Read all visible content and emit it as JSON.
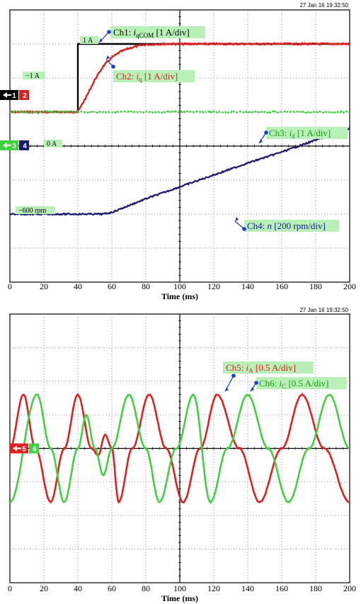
{
  "panels": [
    {
      "timestamp": "27 Jan 16  19:32:50",
      "markers": [
        {
          "id": "1",
          "color": "#000000"
        },
        {
          "id": "2",
          "color": "#e02020"
        },
        {
          "id": "3",
          "color": "#40d040"
        },
        {
          "id": "4",
          "color": "#1a1a6e"
        }
      ],
      "level_labels": [
        "1 A",
        "−1 A",
        "0 A",
        "−600 rpm"
      ],
      "channels": [
        {
          "prefix": "Ch1: ",
          "sym": "i",
          "sub": "qCOM",
          "unit": " [1 A/div]",
          "color": "#000000",
          "bg": "#b8f0b8"
        },
        {
          "prefix": "Ch2: ",
          "sym": "i",
          "sub": "q",
          "unit": " [1 A/div]",
          "color": "#e02020",
          "bg": "#b8f0b8"
        },
        {
          "prefix": "Ch3: ",
          "sym": "i",
          "sub": "d",
          "unit": " [1 A/div]",
          "color": "#10a010",
          "bg": "#b8f0b8"
        },
        {
          "prefix": "Ch4: ",
          "sym": "n",
          "sub": "",
          "unit": " [200 rpm/div]",
          "color": "#1a1a8e",
          "bg": "#b8f0b8"
        }
      ]
    },
    {
      "timestamp": "27 Jan 16  19:32:50",
      "markers": [
        {
          "id": "5",
          "color": "#e02020"
        },
        {
          "id": "6",
          "color": "#40d040"
        }
      ],
      "level_labels": [],
      "channels": [
        {
          "prefix": "Ch5: ",
          "sym": "i",
          "sub": "A",
          "unit": " [0.5 A/div]",
          "color": "#e02020",
          "bg": "#b8f0b8"
        },
        {
          "prefix": "Ch6: ",
          "sym": "i",
          "sub": "C",
          "unit": " [0.5 A/div]",
          "color": "#10a010",
          "bg": "#b8f0b8"
        }
      ]
    }
  ],
  "chart_data": [
    {
      "type": "line",
      "title": "",
      "xlabel": "Time (ms)",
      "ylabel": "",
      "xlim": [
        0,
        200
      ],
      "x_ticks": [
        0,
        20,
        40,
        60,
        80,
        100,
        120,
        140,
        160,
        180,
        200
      ],
      "ylim_div": [
        -4,
        4
      ],
      "grid": true,
      "series": [
        {
          "name": "Ch1: iqCOM [1 A/div]",
          "color": "#000000",
          "x": [
            0,
            40,
            40,
            200
          ],
          "y": [
            -1,
            -1,
            1,
            1
          ]
        },
        {
          "name": "Ch2: iq [1 A/div]",
          "color": "#e02020",
          "x": [
            0,
            40,
            45,
            50,
            55,
            60,
            65,
            70,
            75,
            80,
            90,
            100,
            200
          ],
          "y": [
            -1,
            -1,
            -0.55,
            -0.05,
            0.35,
            0.6,
            0.77,
            0.87,
            0.94,
            0.98,
            1.0,
            1.0,
            1.0
          ]
        },
        {
          "name": "Ch3: id [1 A/div]",
          "color": "#40d040",
          "x": [
            0,
            200
          ],
          "y": [
            0,
            0
          ]
        },
        {
          "name": "Ch4: n [200 rpm/div]",
          "color": "#1a1a6e",
          "x": [
            0,
            55,
            60,
            80,
            100,
            120,
            140,
            160,
            180,
            200
          ],
          "y": [
            -600,
            -600,
            -590,
            -510,
            -440,
            -370,
            -300,
            -235,
            -165,
            -95
          ]
        }
      ]
    },
    {
      "type": "line",
      "title": "",
      "xlabel": "Time (ms)",
      "ylabel": "",
      "xlim": [
        0,
        200
      ],
      "x_ticks": [
        0,
        20,
        40,
        60,
        80,
        100,
        120,
        140,
        160,
        180,
        200
      ],
      "ylim_div": [
        -4,
        4
      ],
      "grid": true,
      "series": [
        {
          "name": "Ch5: iA [0.5 A/div]",
          "color": "#e02020",
          "x": [
            0,
            8,
            15,
            24,
            32,
            40,
            48,
            52,
            56,
            60,
            64,
            72,
            82,
            92,
            102,
            112,
            122,
            135,
            147,
            160,
            172,
            185,
            200
          ],
          "y": [
            0,
            0.8,
            0,
            -0.8,
            0,
            0.8,
            0,
            -0.1,
            0.2,
            0,
            -0.8,
            0,
            0.8,
            0,
            -0.8,
            0,
            0.8,
            0,
            -0.8,
            0,
            0.8,
            0,
            -0.8
          ]
        },
        {
          "name": "Ch6: iC [0.5 A/div]",
          "color": "#40d040",
          "x": [
            0,
            16,
            24,
            32,
            40,
            45,
            50,
            55,
            60,
            70,
            80,
            88,
            98,
            108,
            118,
            128,
            140,
            152,
            164,
            176,
            188,
            200
          ],
          "y": [
            -0.8,
            0.8,
            0,
            -0.8,
            0,
            0.5,
            0,
            -0.4,
            0,
            0.8,
            0,
            -0.8,
            0,
            0.8,
            -0.8,
            0,
            0.8,
            0,
            -0.8,
            0,
            0.8,
            0
          ]
        }
      ]
    }
  ]
}
